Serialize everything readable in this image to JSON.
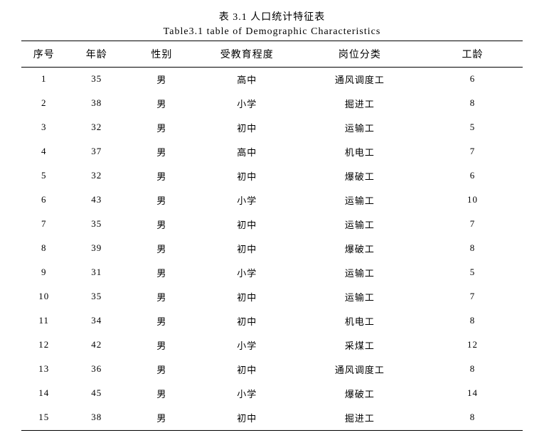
{
  "caption_cn": "表 3.1 人口统计特征表",
  "caption_en": "Table3.1 table of Demographic Characteristics",
  "table": {
    "columns": [
      "序号",
      "年龄",
      "性别",
      "受教育程度",
      "岗位分类",
      "工龄"
    ],
    "col_widths_pct": [
      9,
      12,
      14,
      20,
      25,
      20
    ],
    "rows": [
      [
        "1",
        "35",
        "男",
        "高中",
        "通风调度工",
        "6"
      ],
      [
        "2",
        "38",
        "男",
        "小学",
        "掘进工",
        "8"
      ],
      [
        "3",
        "32",
        "男",
        "初中",
        "运输工",
        "5"
      ],
      [
        "4",
        "37",
        "男",
        "高中",
        "机电工",
        "7"
      ],
      [
        "5",
        "32",
        "男",
        "初中",
        "爆破工",
        "6"
      ],
      [
        "6",
        "43",
        "男",
        "小学",
        "运输工",
        "10"
      ],
      [
        "7",
        "35",
        "男",
        "初中",
        "运输工",
        "7"
      ],
      [
        "8",
        "39",
        "男",
        "初中",
        "爆破工",
        "8"
      ],
      [
        "9",
        "31",
        "男",
        "小学",
        "运输工",
        "5"
      ],
      [
        "10",
        "35",
        "男",
        "初中",
        "运输工",
        "7"
      ],
      [
        "11",
        "34",
        "男",
        "初中",
        "机电工",
        "8"
      ],
      [
        "12",
        "42",
        "男",
        "小学",
        "采煤工",
        "12"
      ],
      [
        "13",
        "36",
        "男",
        "初中",
        "通风调度工",
        "8"
      ],
      [
        "14",
        "45",
        "男",
        "小学",
        "爆破工",
        "14"
      ],
      [
        "15",
        "38",
        "男",
        "初中",
        "掘进工",
        "8"
      ]
    ],
    "border_color": "#000000",
    "header_fontsize": 14,
    "cell_fontsize": 13,
    "background_color": "#ffffff"
  }
}
